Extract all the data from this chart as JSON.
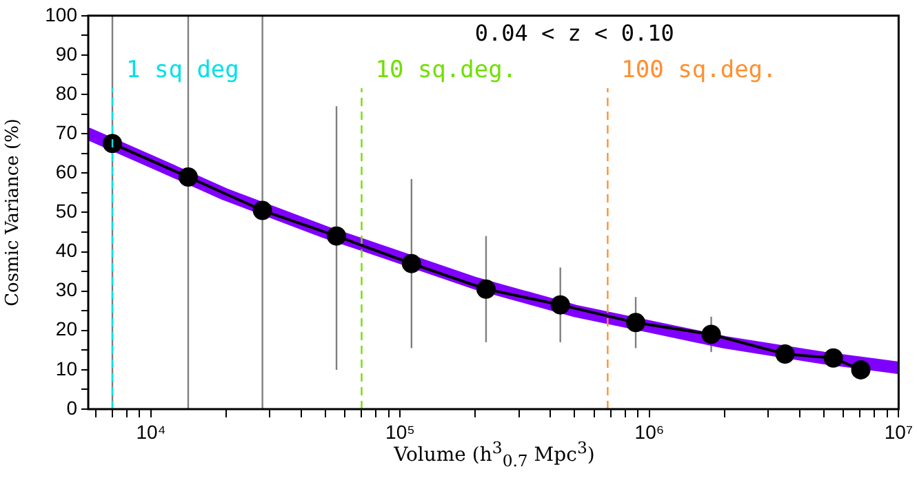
{
  "chart_data": {
    "type": "line",
    "title": "0.04 < z < 0.10",
    "xlabel": "Volume (h$^{3}$$_{0.7}$ Mpc$^{3}$)",
    "ylabel": "Cosmic Variance (%)",
    "log": "x",
    "xlim": [
      5600,
      10000000
    ],
    "xticks": [
      {
        "value": 6000,
        "label": null
      },
      {
        "value": 7000,
        "label": null
      },
      {
        "value": 8000,
        "label": null
      },
      {
        "value": 9000,
        "label": null
      },
      {
        "value": 10000,
        "label": "10⁴"
      },
      {
        "value": 20000,
        "label": null
      },
      {
        "value": 30000,
        "label": null
      },
      {
        "value": 40000,
        "label": null
      },
      {
        "value": 50000,
        "label": null
      },
      {
        "value": 60000,
        "label": null
      },
      {
        "value": 70000,
        "label": null
      },
      {
        "value": 80000,
        "label": null
      },
      {
        "value": 90000,
        "label": null
      },
      {
        "value": 100000,
        "label": "10⁵"
      },
      {
        "value": 200000,
        "label": null
      },
      {
        "value": 300000,
        "label": null
      },
      {
        "value": 400000,
        "label": null
      },
      {
        "value": 500000,
        "label": null
      },
      {
        "value": 600000,
        "label": null
      },
      {
        "value": 700000,
        "label": null
      },
      {
        "value": 800000,
        "label": null
      },
      {
        "value": 900000,
        "label": null
      },
      {
        "value": 1000000,
        "label": "10⁶"
      },
      {
        "value": 2000000,
        "label": null
      },
      {
        "value": 3000000,
        "label": null
      },
      {
        "value": 4000000,
        "label": null
      },
      {
        "value": 5000000,
        "label": null
      },
      {
        "value": 6000000,
        "label": null
      },
      {
        "value": 7000000,
        "label": null
      },
      {
        "value": 8000000,
        "label": null
      },
      {
        "value": 9000000,
        "label": null
      },
      {
        "value": 10000000,
        "label": "10⁷"
      }
    ],
    "ylim": [
      0,
      100
    ],
    "yticks": [
      0,
      {
        "value": 5,
        "label": null
      },
      10,
      {
        "value": 15,
        "label": null
      },
      20,
      {
        "value": 25,
        "label": null
      },
      30,
      {
        "value": 35,
        "label": null
      },
      40,
      {
        "value": 45,
        "label": null
      },
      50,
      {
        "value": 55,
        "label": null
      },
      60,
      {
        "value": 65,
        "label": null
      },
      70,
      {
        "value": 75,
        "label": null
      },
      80,
      {
        "value": 85,
        "label": null
      },
      90,
      {
        "value": 95,
        "label": null
      },
      100
    ],
    "grid": false,
    "legend": false,
    "ref_lines": [
      {
        "axis": "x",
        "value": 7000,
        "label": "1 sq deg",
        "color": "#00e0e8",
        "line_style": "dashed"
      },
      {
        "axis": "x",
        "value": 70000,
        "label": "10 sq.deg.",
        "color": "#70e000",
        "line_style": "dashed"
      },
      {
        "axis": "x",
        "value": 680000,
        "label": "100 sq.deg.",
        "color": "#ff9030",
        "line_style": "dashed"
      }
    ],
    "series": [
      {
        "color": "#8000ff",
        "marker": "none",
        "x": [
          5600,
          10000,
          20000,
          50000,
          100000,
          200000,
          500000,
          1000000,
          2000000,
          5000000,
          10000000
        ],
        "values": [
          70,
          63,
          54.5,
          45,
          38.5,
          32,
          25,
          21,
          17,
          13,
          10.5
        ]
      },
      {
        "type": "line",
        "color": "#000000",
        "marker": "circle",
        "x": [
          7000,
          14100,
          28000,
          55500,
          111000,
          221000,
          439000,
          881000,
          1770000,
          3500000,
          5470000,
          7050000
        ],
        "values": [
          67.5,
          59,
          50.5,
          44,
          37,
          30.5,
          26.5,
          22,
          19,
          14,
          13,
          10
        ],
        "errors": [
          [
            0,
            100
          ],
          [
            0,
            100
          ],
          [
            0,
            100
          ],
          [
            10,
            77
          ],
          [
            15.5,
            58.5
          ],
          [
            17,
            44
          ],
          [
            17,
            36
          ],
          [
            15.5,
            28.5
          ],
          [
            14.5,
            23.5
          ],
          [
            11.5,
            16.5
          ],
          [
            11,
            15
          ],
          null
        ]
      }
    ]
  }
}
